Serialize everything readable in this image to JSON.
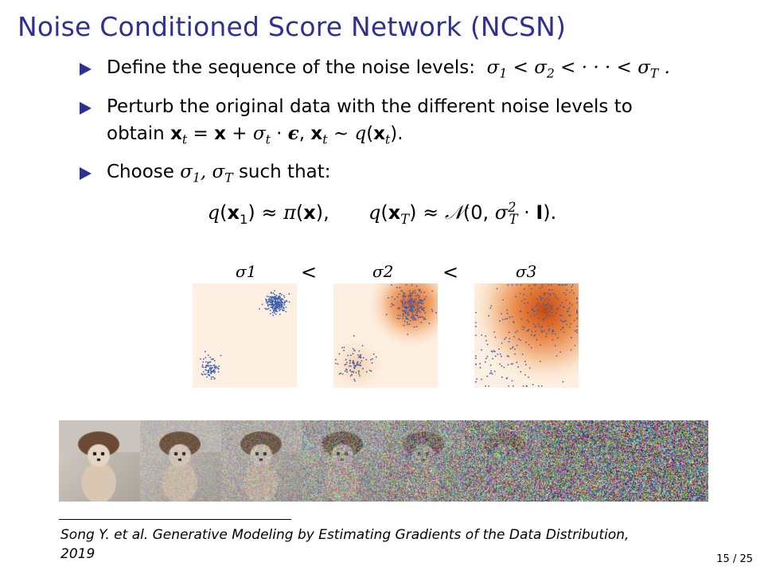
{
  "slide": {
    "title": "Noise Conditioned Score Network (NCSN)",
    "page_number": "15 / 25"
  },
  "bullets": [
    {
      "text": "Define the sequence of the noise levels:",
      "math": "σ1 < σ2 < ··· < σT ."
    },
    {
      "line1": "Perturb the original data with the different noise levels to",
      "line2_prefix": "obtain",
      "math1": "xt = x + σt · ϵ,",
      "math2": "xt ∼ q(xt)."
    },
    {
      "text": "Choose",
      "math": "σ1, σT",
      "suffix": "such that:"
    }
  ],
  "display_equation": {
    "part1": "q(x1) ≈ π(x),",
    "part2": "q(xT) ≈ N(0, σT² · I)."
  },
  "noise_figure": {
    "labels": [
      "σ1",
      "σ2",
      "σ3"
    ],
    "separators": [
      "<",
      "<"
    ]
  },
  "thumbnails": {
    "count": 8,
    "noise_levels": [
      0,
      0.2,
      0.35,
      0.55,
      0.7,
      0.85,
      0.95,
      1.0
    ]
  },
  "footnote": {
    "line1": "Song Y. et al. Generative Modeling by Estimating Gradients of the Data Distribution,",
    "line2": "2019"
  },
  "colors": {
    "title": "#2f3192",
    "bullet": "#2f3192",
    "points": "#3f5fb0",
    "density": "#e06a24",
    "panel_bg": "#fdf0e2"
  }
}
